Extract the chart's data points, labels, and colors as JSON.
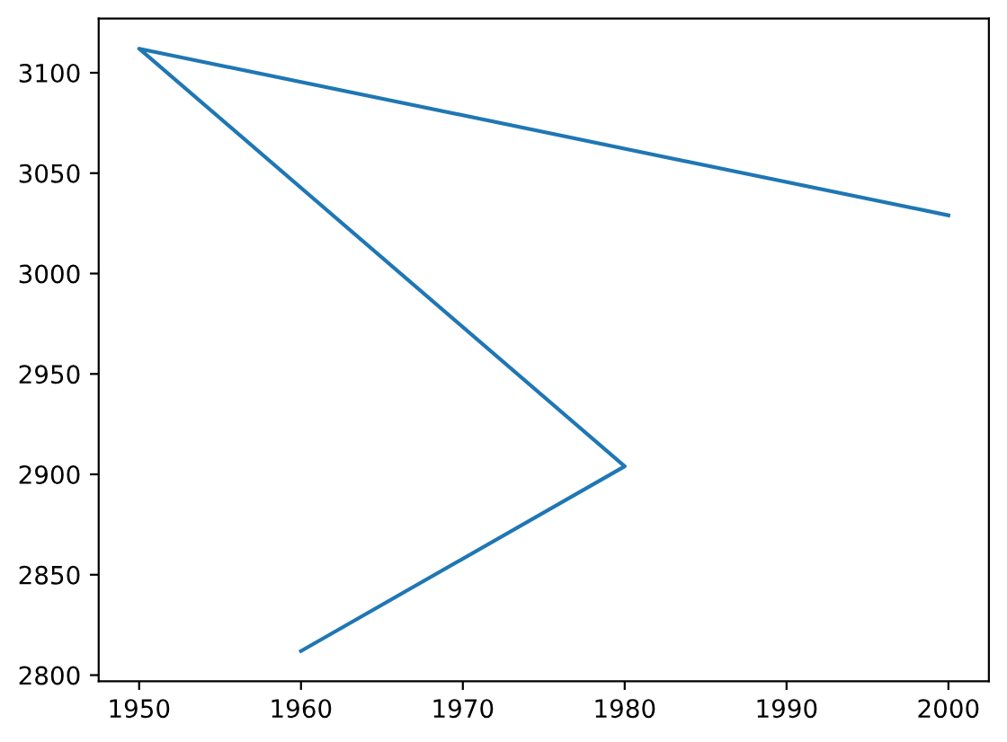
{
  "chart_data": {
    "type": "line",
    "series": [
      {
        "color": "#1f77b4",
        "x": [
          1960,
          1980,
          1950,
          2000
        ],
        "values": [
          2812,
          2904,
          3112,
          3029
        ]
      }
    ],
    "xlim": [
      1947.5,
      2002.5
    ],
    "xticks": [
      1950,
      1960,
      1970,
      1980,
      1990,
      2000
    ],
    "ylim": [
      2797,
      3127
    ],
    "yticks": [
      2800,
      2850,
      2900,
      2950,
      3000,
      3050,
      3100
    ],
    "grid": false,
    "legend": false
  }
}
